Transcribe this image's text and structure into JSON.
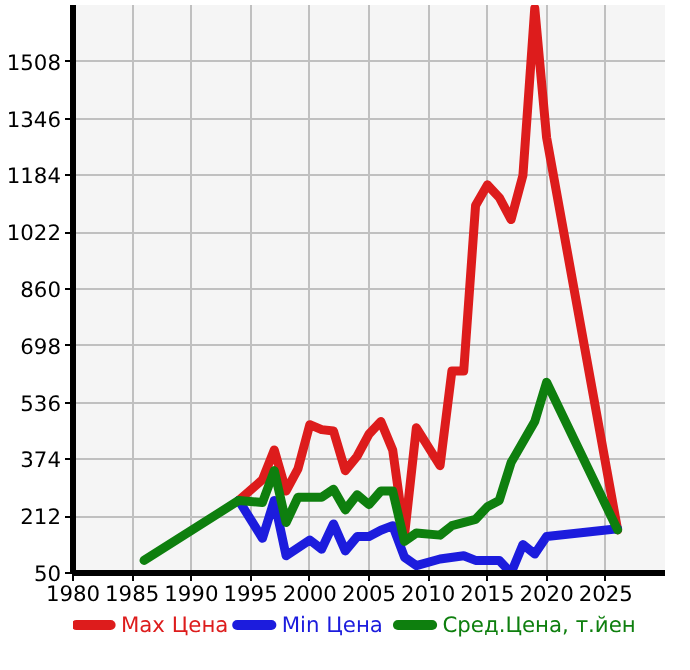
{
  "chart_data": {
    "type": "line",
    "xlim": [
      1980,
      2030
    ],
    "xticks": [
      1980,
      1985,
      1990,
      1995,
      2000,
      2005,
      2010,
      2015,
      2020,
      2025
    ],
    "ylim": [
      50,
      1670
    ],
    "yticks": [
      50,
      212,
      374,
      536,
      698,
      860,
      1022,
      1184,
      1346,
      1508
    ],
    "grid": true,
    "legend": "bottom",
    "marker": "none",
    "line_style": "solid",
    "series": [
      {
        "name": "Max Цена",
        "color": "#dd1c1c",
        "x": [
          1994,
          1996,
          1997,
          1998,
          1999,
          2000,
          2001,
          2002,
          2003,
          2004,
          2005,
          2006,
          2007,
          2008,
          2009,
          2011,
          2012,
          2013,
          2014,
          2015,
          2016,
          2017,
          2018,
          2019,
          2020,
          2026
        ],
        "values": [
          257,
          316,
          401,
          284,
          347,
          473,
          459,
          455,
          342,
          383,
          446,
          482,
          401,
          158,
          464,
          356,
          626,
          626,
          1098,
          1157,
          1121,
          1058,
          1184,
          1661,
          1292,
          173
        ]
      },
      {
        "name": "Min Цена",
        "color": "#1c1cdd",
        "x": [
          1994,
          1996,
          1997,
          1998,
          2000,
          2001,
          2002,
          2003,
          2004,
          2005,
          2006,
          2007,
          2008,
          2009,
          2011,
          2013,
          2014,
          2016,
          2017,
          2018,
          2019,
          2020,
          2026
        ],
        "values": [
          257,
          149,
          257,
          99,
          144,
          118,
          190,
          113,
          154,
          154,
          172,
          185,
          95,
          71,
          90,
          99,
          86,
          86,
          50,
          131,
          104,
          154,
          176
        ]
      },
      {
        "name": "Сред.Цена, т.йен",
        "color": "#0e7f0e",
        "x": [
          1986,
          1994,
          1996,
          1997,
          1998,
          1999,
          2001,
          2002,
          2003,
          2004,
          2005,
          2006,
          2007,
          2008,
          2009,
          2011,
          2012,
          2014,
          2015,
          2016,
          2017,
          2019,
          2020,
          2026
        ],
        "values": [
          86,
          257,
          251,
          342,
          194,
          266,
          266,
          289,
          230,
          273,
          245,
          284,
          284,
          140,
          164,
          158,
          185,
          203,
          239,
          257,
          365,
          482,
          594,
          173
        ]
      }
    ]
  }
}
